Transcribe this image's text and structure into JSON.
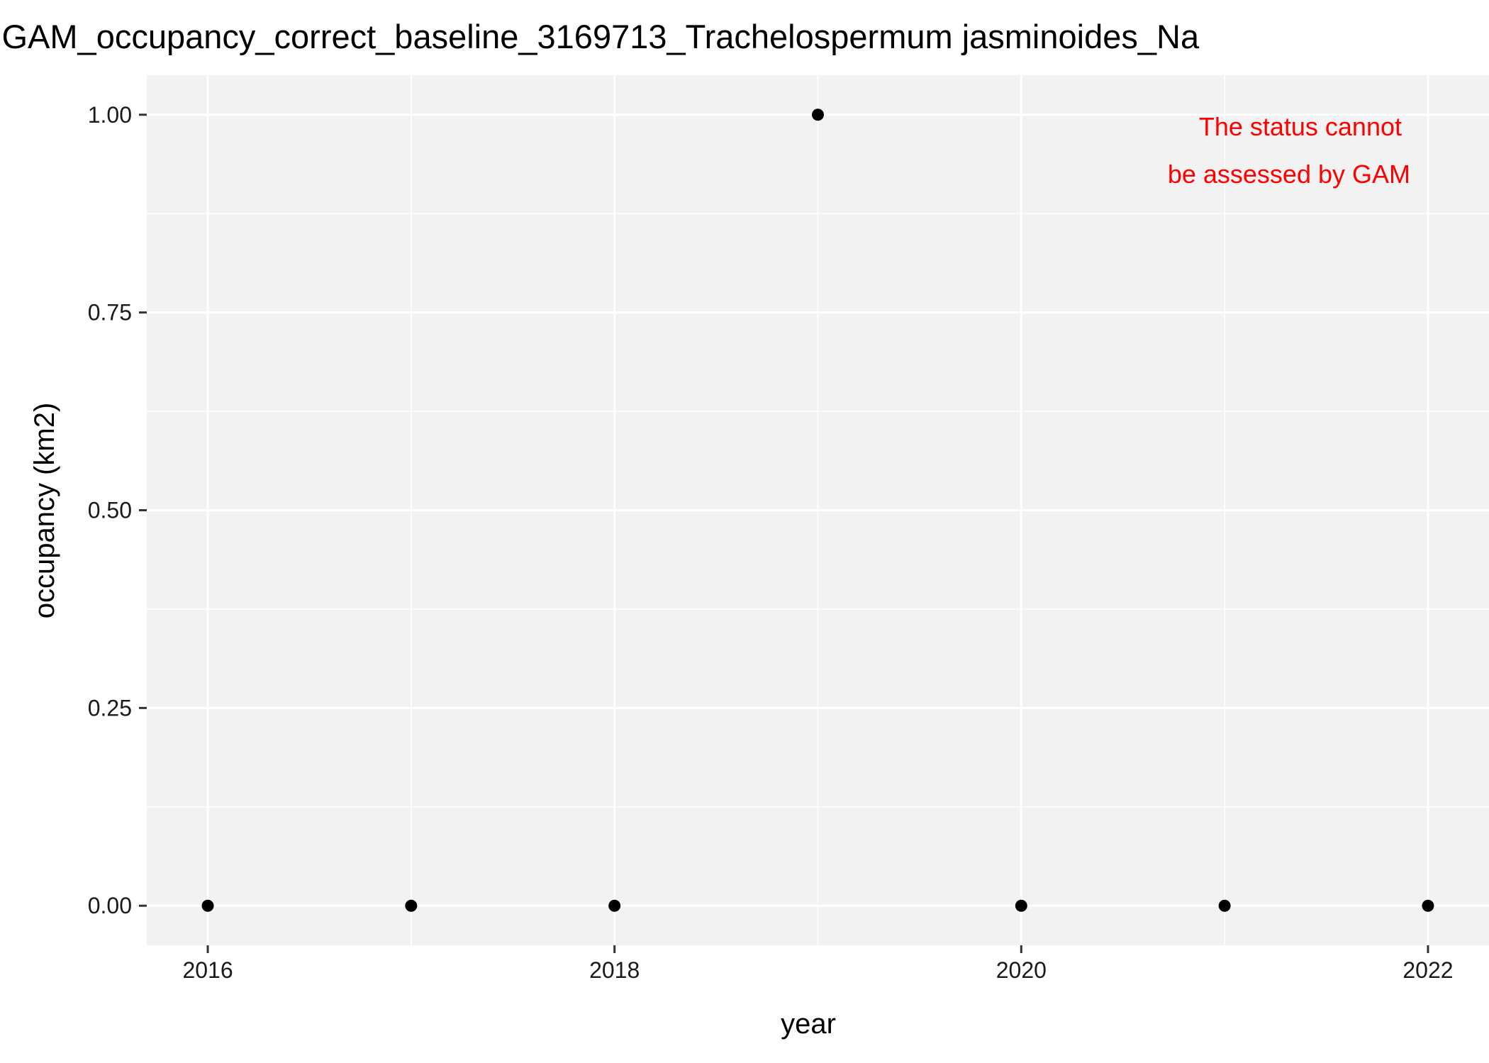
{
  "chart_data": {
    "type": "scatter",
    "title": "GAM_occupancy_correct_baseline_3169713_Trachelospermum jasminoides_Na",
    "xlabel": "year",
    "ylabel": "occupancy (km2)",
    "x": [
      2016,
      2017,
      2018,
      2019,
      2020,
      2021,
      2022
    ],
    "y": [
      0,
      0,
      0,
      1,
      0,
      0,
      0
    ],
    "xlim": [
      2015.7,
      2022.3
    ],
    "ylim": [
      -0.05,
      1.05
    ],
    "x_ticks": [
      2016,
      2018,
      2020,
      2022
    ],
    "x_tick_labels": [
      "2016",
      "2018",
      "2020",
      "2022"
    ],
    "y_ticks": [
      0,
      0.25,
      0.5,
      0.75,
      1
    ],
    "y_tick_labels": [
      "0.00",
      "0.25",
      "0.50",
      "0.75",
      "1.00"
    ],
    "grid": true,
    "panel_color": "#f2f2f2",
    "point_color": "#000000",
    "annotation": {
      "lines": [
        "The status cannot",
        "be assessed by GAM"
      ],
      "color": "#ff0000"
    }
  }
}
